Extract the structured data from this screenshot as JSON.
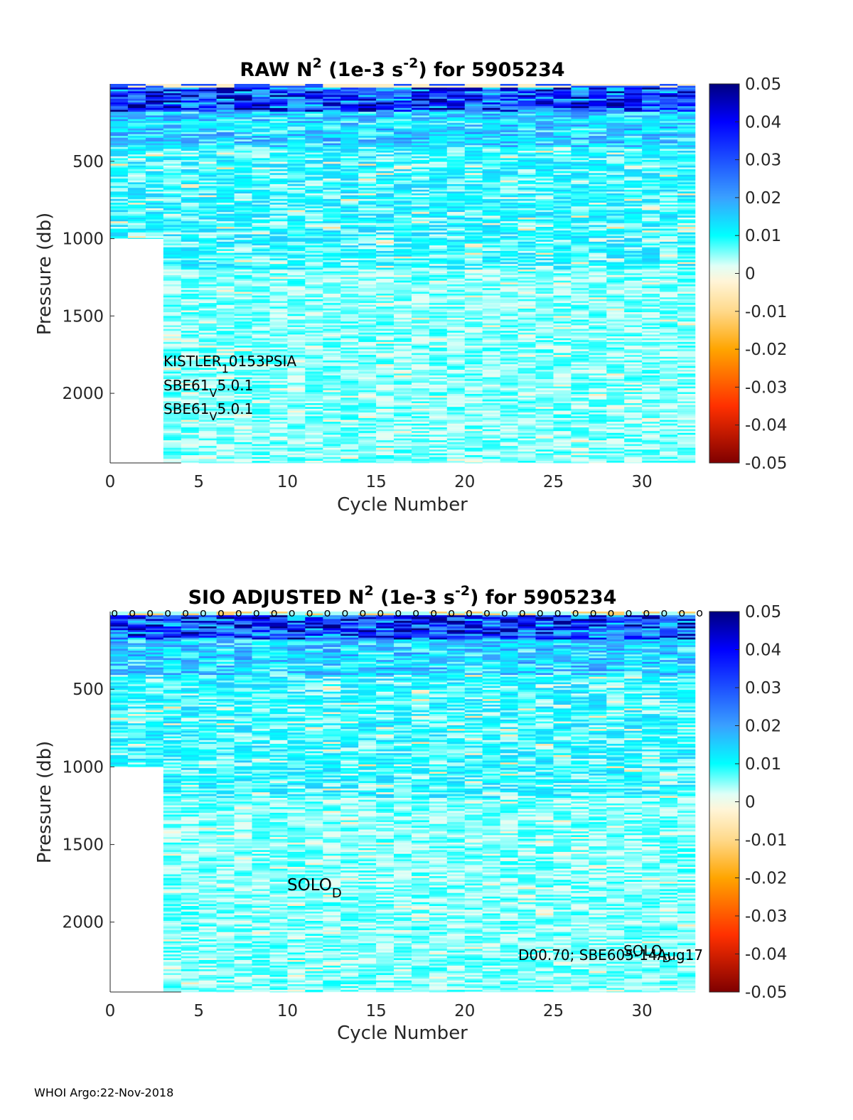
{
  "chart_data": [
    {
      "type": "heatmap",
      "title_parts": {
        "pre": "RAW N",
        "sup1": "2",
        "mid": " (1e-3 s",
        "sup2": "-2",
        "post": ") for 5905234"
      },
      "xlabel": "Cycle Number",
      "ylabel": "Pressure (db)",
      "xlim": [
        0,
        33
      ],
      "ylim": [
        2450,
        0
      ],
      "x_ticks": [
        0,
        5,
        10,
        15,
        20,
        25,
        30
      ],
      "y_ticks": [
        500,
        1000,
        1500,
        2000
      ],
      "cycles": [
        1,
        2,
        3,
        4,
        5,
        6,
        7,
        8,
        9,
        10,
        11,
        12,
        13,
        14,
        15,
        16,
        17,
        18,
        19,
        20,
        21,
        22,
        23,
        24,
        25,
        26,
        27,
        28,
        29,
        30,
        31,
        32,
        33
      ],
      "profile_max_pressure": [
        1000,
        1000,
        1000,
        2450,
        2450,
        2450,
        2450,
        2450,
        2450,
        2450,
        2450,
        2450,
        2450,
        2450,
        2450,
        2450,
        2450,
        2450,
        2450,
        2450,
        2450,
        2450,
        2450,
        2450,
        2450,
        2450,
        2450,
        2450,
        2450,
        2450,
        2450,
        2450,
        2450
      ],
      "colorbar": {
        "min": -0.05,
        "max": 0.05,
        "ticks": [
          "0.05",
          "0.04",
          "0.03",
          "0.02",
          "0.01",
          "0",
          "-0.01",
          "-0.02",
          "-0.03",
          "-0.04",
          "-0.05"
        ]
      },
      "surface_markers": false,
      "annotations": [
        {
          "base": "KISTLER",
          "sub": "1",
          "rest": "0153PSIA"
        },
        {
          "base": "SBE61",
          "sub": "V",
          "rest": "5.0.1"
        },
        {
          "base": "SBE61",
          "sub": "V",
          "rest": "5.0.1"
        }
      ]
    },
    {
      "type": "heatmap",
      "title_parts": {
        "pre": "SIO  ADJUSTED N",
        "sup1": "2",
        "mid": " (1e-3 s",
        "sup2": "-2",
        "post": ") for 5905234"
      },
      "xlabel": "Cycle Number",
      "ylabel": "Pressure (db)",
      "xlim": [
        0,
        33
      ],
      "ylim": [
        2450,
        0
      ],
      "x_ticks": [
        0,
        5,
        10,
        15,
        20,
        25,
        30
      ],
      "y_ticks": [
        500,
        1000,
        1500,
        2000
      ],
      "cycles": [
        1,
        2,
        3,
        4,
        5,
        6,
        7,
        8,
        9,
        10,
        11,
        12,
        13,
        14,
        15,
        16,
        17,
        18,
        19,
        20,
        21,
        22,
        23,
        24,
        25,
        26,
        27,
        28,
        29,
        30,
        31,
        32,
        33
      ],
      "profile_max_pressure": [
        1000,
        1000,
        1000,
        2450,
        2450,
        2450,
        2450,
        2450,
        2450,
        2450,
        2450,
        2450,
        2450,
        2450,
        2450,
        2450,
        2450,
        2450,
        2450,
        2450,
        2450,
        2450,
        2450,
        2450,
        2450,
        2450,
        2450,
        2450,
        2450,
        2450,
        2450,
        2450,
        2450
      ],
      "colorbar": {
        "min": -0.05,
        "max": 0.05,
        "ticks": [
          "0.05",
          "0.04",
          "0.03",
          "0.02",
          "0.01",
          "0",
          "-0.01",
          "-0.02",
          "-0.03",
          "-0.04",
          "-0.05"
        ]
      },
      "surface_markers": true,
      "marker_symbol": "o",
      "annotations": [
        {
          "base": "SOLO",
          "sub": "D",
          "rest": ""
        },
        {
          "base": "D00.70; SBE605-14Aug17",
          "sub": "",
          "rest": ""
        },
        {
          "base": "SOLO",
          "sub": "D",
          "rest": ""
        }
      ]
    }
  ],
  "footer": "WHOI Argo:22-Nov-2018"
}
